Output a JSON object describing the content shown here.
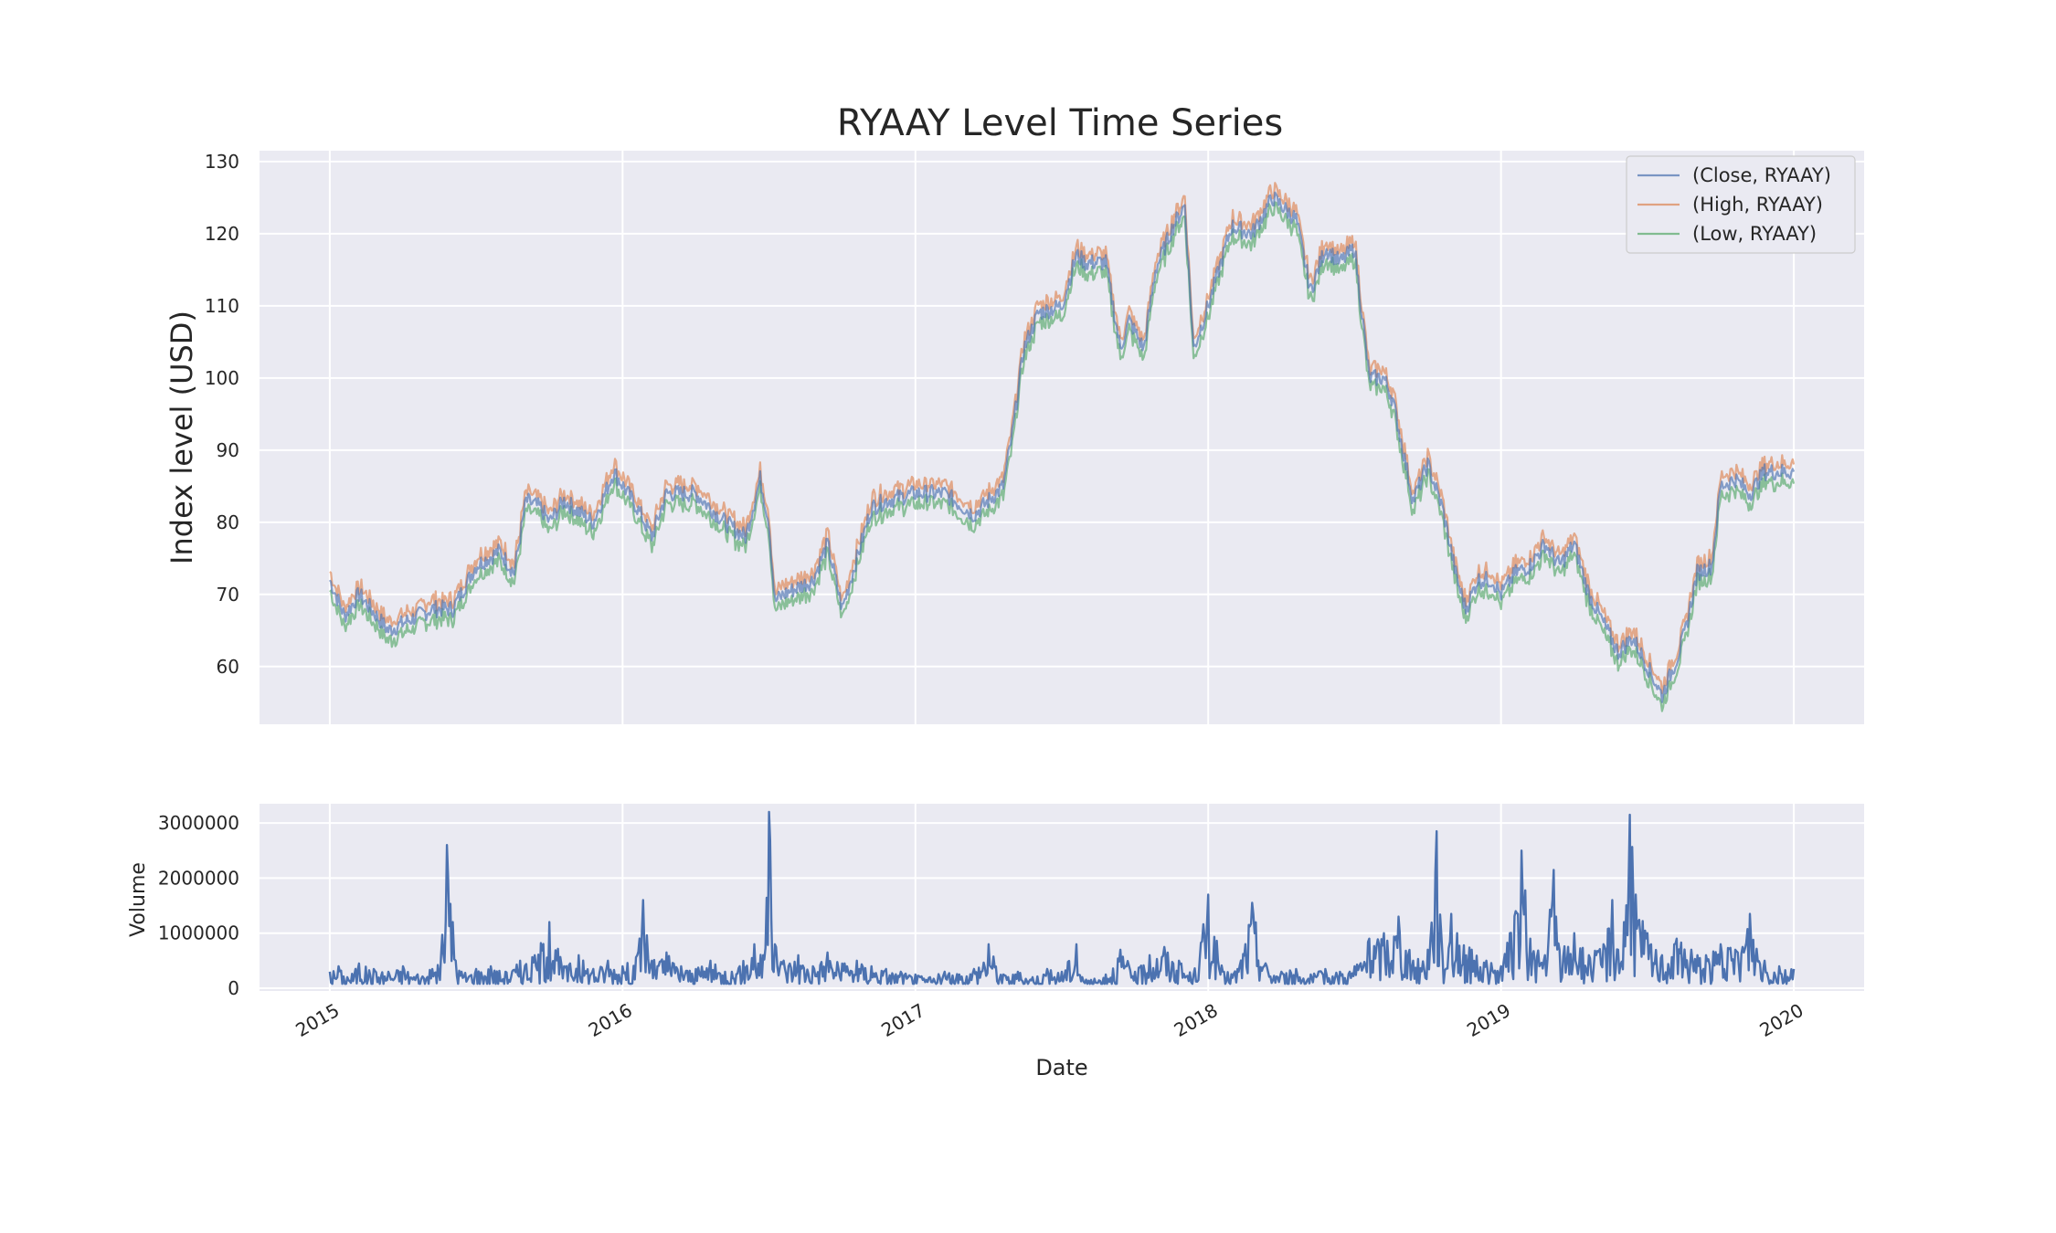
{
  "chart_data": [
    {
      "type": "line",
      "title": "RYAAY Level Time Series",
      "ylabel": "Index level (USD)",
      "xlabel": "",
      "x_ticks": [
        "2015",
        "2016",
        "2017",
        "2018",
        "2019",
        "2020"
      ],
      "y_ticks": [
        60,
        70,
        80,
        90,
        100,
        110,
        120,
        130
      ],
      "xlim": [
        2014.76,
        2020.24
      ],
      "ylim": [
        52,
        131.5
      ],
      "grid": true,
      "legend": "top-right",
      "series": [
        {
          "name": "(Close, RYAAY)",
          "color": "#4c72b0"
        },
        {
          "name": "(High, RYAAY)",
          "color": "#dd8452"
        },
        {
          "name": "(Low, RYAAY)",
          "color": "#55a868"
        }
      ],
      "x": [
        2015.0,
        2015.05,
        2015.1,
        2015.2,
        2015.3,
        2015.35,
        2015.42,
        2015.5,
        2015.58,
        2015.63,
        2015.67,
        2015.72,
        2015.75,
        2015.8,
        2015.9,
        2015.97,
        2016.05,
        2016.1,
        2016.15,
        2016.25,
        2016.35,
        2016.42,
        2016.47,
        2016.5,
        2016.52,
        2016.55,
        2016.65,
        2016.7,
        2016.75,
        2016.8,
        2016.85,
        2016.9,
        2017.0,
        2017.1,
        2017.2,
        2017.3,
        2017.33,
        2017.37,
        2017.42,
        2017.5,
        2017.55,
        2017.58,
        2017.65,
        2017.7,
        2017.73,
        2017.78,
        2017.82,
        2017.88,
        2017.92,
        2017.95,
        2018.0,
        2018.08,
        2018.15,
        2018.22,
        2018.3,
        2018.35,
        2018.4,
        2018.45,
        2018.5,
        2018.55,
        2018.6,
        2018.63,
        2018.7,
        2018.75,
        2018.8,
        2018.85,
        2018.88,
        2018.92,
        2018.97,
        2019.0,
        2019.05,
        2019.1,
        2019.15,
        2019.2,
        2019.25,
        2019.3,
        2019.35,
        2019.4,
        2019.45,
        2019.5,
        2019.55,
        2019.6,
        2019.63,
        2019.67,
        2019.72,
        2019.75,
        2019.8,
        2019.85,
        2019.9,
        2020.0
      ],
      "close": [
        72,
        67,
        70,
        65,
        67,
        68,
        68,
        74,
        76,
        73,
        83,
        82,
        80,
        83,
        80,
        87,
        82,
        78,
        84,
        84,
        80,
        78,
        86,
        80,
        69,
        70,
        72,
        77,
        68,
        75,
        82,
        83,
        84,
        84,
        81,
        85,
        92,
        104,
        109,
        110,
        117,
        116,
        116,
        104,
        108,
        104,
        115,
        121,
        124,
        104,
        110,
        121,
        120,
        125,
        122,
        112,
        118,
        116,
        118,
        100,
        100,
        97,
        83,
        88,
        82,
        72,
        68,
        72,
        72,
        70,
        73,
        74,
        77,
        74,
        77,
        70,
        66,
        62,
        64,
        60,
        56,
        61,
        65,
        73,
        74,
        85,
        86,
        84,
        87,
        87
      ],
      "high_offset": 1.2,
      "low_offset": -1.4
    },
    {
      "type": "line",
      "title": "",
      "ylabel": "Volume",
      "xlabel": "Date",
      "x_ticks": [
        "2015",
        "2016",
        "2017",
        "2018",
        "2019",
        "2020"
      ],
      "y_ticks": [
        "0",
        "1000000",
        "2000000",
        "3000000"
      ],
      "y_tick_values": [
        0,
        1000000,
        2000000,
        3000000
      ],
      "xlim": [
        2014.76,
        2020.24
      ],
      "ylim": [
        -50000,
        3350000
      ],
      "grid": true,
      "series": [
        {
          "name": "",
          "color": "#4c72b0"
        }
      ],
      "x": [
        2015.0,
        2015.03,
        2015.06,
        2015.1,
        2015.15,
        2015.2,
        2015.25,
        2015.3,
        2015.35,
        2015.38,
        2015.4,
        2015.42,
        2015.43,
        2015.45,
        2015.5,
        2015.55,
        2015.6,
        2015.65,
        2015.7,
        2015.75,
        2015.8,
        2015.85,
        2015.9,
        2015.95,
        2016.0,
        2016.05,
        2016.07,
        2016.1,
        2016.15,
        2016.2,
        2016.25,
        2016.3,
        2016.35,
        2016.4,
        2016.45,
        2016.48,
        2016.5,
        2016.52,
        2016.55,
        2016.6,
        2016.65,
        2016.7,
        2016.75,
        2016.8,
        2016.85,
        2016.9,
        2016.95,
        2017.0,
        2017.05,
        2017.1,
        2017.15,
        2017.2,
        2017.25,
        2017.3,
        2017.35,
        2017.4,
        2017.45,
        2017.5,
        2017.55,
        2017.57,
        2017.6,
        2017.65,
        2017.7,
        2017.75,
        2017.8,
        2017.85,
        2017.9,
        2017.95,
        2018.0,
        2018.05,
        2018.1,
        2018.15,
        2018.2,
        2018.25,
        2018.3,
        2018.35,
        2018.4,
        2018.45,
        2018.5,
        2018.55,
        2018.6,
        2018.65,
        2018.7,
        2018.75,
        2018.78,
        2018.8,
        2018.83,
        2018.85,
        2018.9,
        2018.95,
        2019.0,
        2019.03,
        2019.05,
        2019.07,
        2019.1,
        2019.15,
        2019.18,
        2019.2,
        2019.25,
        2019.3,
        2019.35,
        2019.38,
        2019.4,
        2019.42,
        2019.44,
        2019.46,
        2019.5,
        2019.55,
        2019.6,
        2019.65,
        2019.7,
        2019.75,
        2019.8,
        2019.85,
        2019.9,
        2019.95,
        2020.0
      ],
      "volume": [
        300000,
        400000,
        200000,
        450000,
        350000,
        300000,
        400000,
        250000,
        350000,
        600000,
        2600000,
        1200000,
        500000,
        300000,
        350000,
        400000,
        300000,
        500000,
        600000,
        1200000,
        400000,
        600000,
        350000,
        500000,
        400000,
        600000,
        1600000,
        500000,
        650000,
        400000,
        350000,
        500000,
        300000,
        400000,
        800000,
        600000,
        3200000,
        800000,
        500000,
        600000,
        400000,
        650000,
        450000,
        500000,
        400000,
        350000,
        300000,
        250000,
        200000,
        300000,
        250000,
        350000,
        800000,
        250000,
        300000,
        200000,
        350000,
        300000,
        800000,
        200000,
        150000,
        250000,
        700000,
        300000,
        600000,
        750000,
        500000,
        250000,
        1700000,
        300000,
        350000,
        1550000,
        400000,
        300000,
        350000,
        250000,
        350000,
        300000,
        400000,
        900000,
        1000000,
        1300000,
        500000,
        700000,
        2850000,
        600000,
        1350000,
        1000000,
        700000,
        500000,
        400000,
        1000000,
        1400000,
        2500000,
        900000,
        600000,
        2150000,
        700000,
        1000000,
        600000,
        800000,
        1600000,
        700000,
        1200000,
        3150000,
        1700000,
        1000000,
        600000,
        900000,
        700000,
        600000,
        800000,
        700000,
        1350000,
        500000,
        400000,
        350000
      ]
    }
  ]
}
